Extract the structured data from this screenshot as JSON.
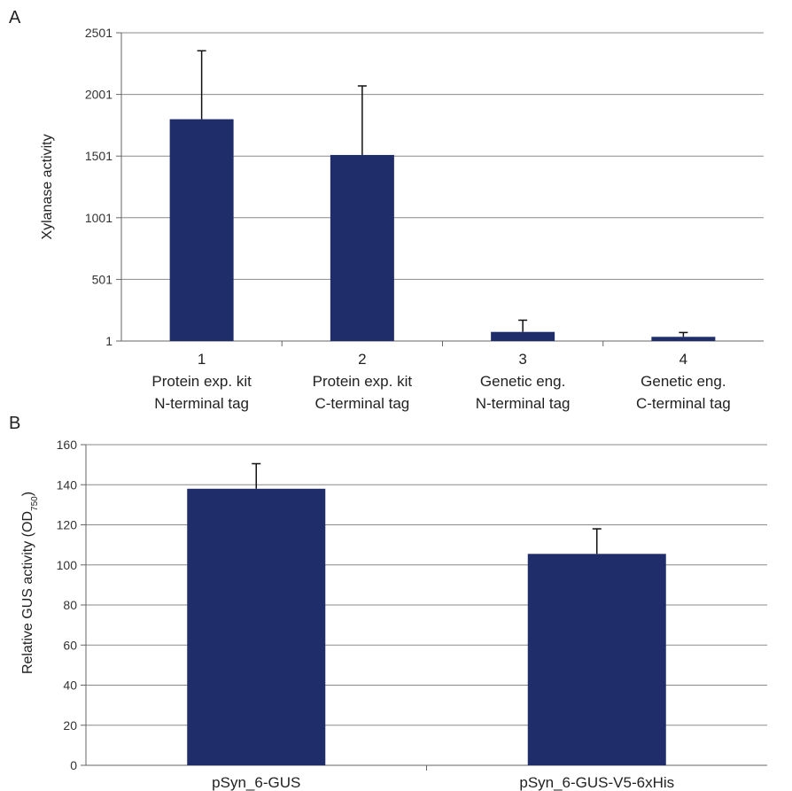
{
  "colors": {
    "bar": "#1f2e6b",
    "grid": "#8a8a8a",
    "axis": "#666666"
  },
  "chart_data": [
    {
      "panel": "A",
      "type": "bar",
      "ylabel": "Xylanase activity",
      "yticks": [
        "1",
        "501",
        "1001",
        "1501",
        "2001",
        "2501"
      ],
      "ylim": [
        1,
        2501
      ],
      "grid": true,
      "categories": [
        [
          "1",
          "Protein exp. kit",
          "N-terminal tag"
        ],
        [
          "2",
          "Protein exp. kit",
          "C-terminal tag"
        ],
        [
          "3",
          "Genetic eng.",
          "N-terminal tag"
        ],
        [
          "4",
          "Genetic eng.",
          "C-terminal tag"
        ]
      ],
      "values": [
        1800,
        1510,
        75,
        35
      ],
      "errors": [
        555,
        560,
        95,
        35
      ]
    },
    {
      "panel": "B",
      "type": "bar",
      "ylabel": "Relative GUS activity (OD",
      "ylabel_sub": "750",
      "ylabel_close": ")",
      "yticks": [
        "0",
        "20",
        "40",
        "60",
        "80",
        "100",
        "120",
        "140",
        "160"
      ],
      "ylim": [
        0,
        160
      ],
      "grid": true,
      "categories": [
        [
          "pSyn_6-GUS"
        ],
        [
          "pSyn_6-GUS-V5-6xHis"
        ]
      ],
      "values": [
        138,
        105.5
      ],
      "errors": [
        12.5,
        12.5
      ]
    }
  ]
}
